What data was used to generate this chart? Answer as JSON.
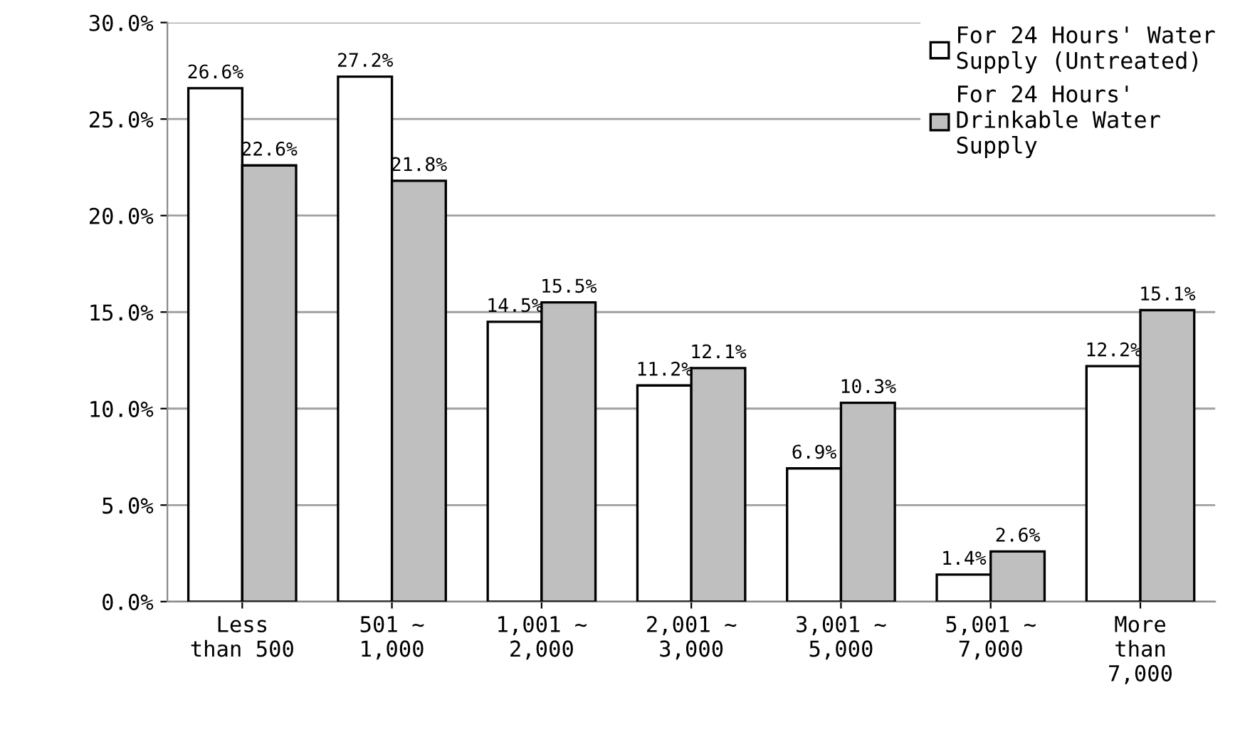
{
  "chart_data": {
    "type": "bar",
    "categories": [
      "Less\nthan 500",
      "501 ~\n1,000",
      "1,001 ~\n2,000",
      "2,001 ~\n3,000",
      "3,001 ~\n5,000",
      "5,001 ~\n7,000",
      "More\nthan\n7,000"
    ],
    "series": [
      {
        "name": "For 24 Hours' Water\nSupply (Untreated)",
        "color": "#ffffff",
        "values": [
          26.6,
          27.2,
          14.5,
          11.2,
          6.9,
          1.4,
          12.2
        ],
        "value_labels": [
          "26.6%",
          "27.2%",
          "14.5%",
          "11.2%",
          "6.9%",
          "1.4%",
          "12.2%"
        ]
      },
      {
        "name": "For 24 Hours'\nDrinkable Water\nSupply",
        "color": "#bfbfbf",
        "values": [
          22.6,
          21.8,
          15.5,
          12.1,
          10.3,
          2.6,
          15.1
        ],
        "value_labels": [
          "22.6%",
          "21.8%",
          "15.5%",
          "12.1%",
          "10.3%",
          "2.6%",
          "15.1%"
        ]
      }
    ],
    "ylim": [
      0,
      30
    ],
    "yticks": [
      {
        "value": 0,
        "label": "0.0%"
      },
      {
        "value": 5,
        "label": "5.0%"
      },
      {
        "value": 10,
        "label": "10.0%"
      },
      {
        "value": 15,
        "label": "15.0%"
      },
      {
        "value": 20,
        "label": "20.0%"
      },
      {
        "value": 25,
        "label": "25.0%"
      },
      {
        "value": 30,
        "label": "30.0%"
      }
    ],
    "grid": "y",
    "legend": "top right"
  }
}
